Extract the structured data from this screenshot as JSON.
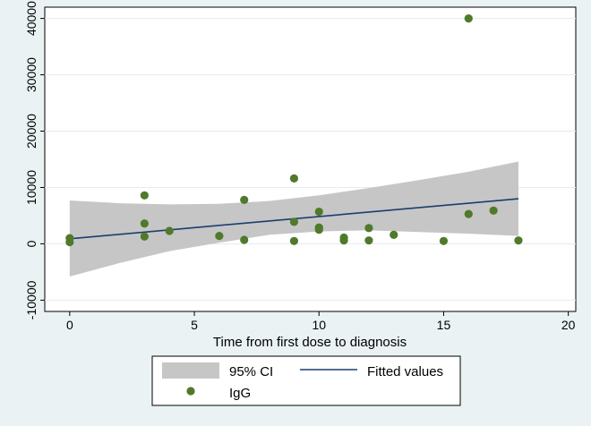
{
  "chart_data": {
    "type": "scatter",
    "title": "",
    "xlabel": "Time from first dose to diagnosis",
    "ylabel": "",
    "xlim": [
      -1,
      20.3
    ],
    "ylim": [
      -12000,
      42000
    ],
    "xticks": [
      0,
      5,
      10,
      15,
      20
    ],
    "yticks": [
      -10000,
      0,
      10000,
      20000,
      30000,
      40000
    ],
    "xtick_labels": [
      "0",
      "5",
      "10",
      "15",
      "20"
    ],
    "ytick_labels": [
      "-10000",
      "0",
      "10000",
      "20000",
      "30000",
      "40000"
    ],
    "grid": true,
    "legend_position": "bottom",
    "series": [
      {
        "name": "IgG",
        "kind": "scatter",
        "color": "#4f7a2c",
        "points": [
          [
            0,
            1000
          ],
          [
            0,
            300
          ],
          [
            3,
            8600
          ],
          [
            3,
            3600
          ],
          [
            3,
            1300
          ],
          [
            4,
            2300
          ],
          [
            6,
            1400
          ],
          [
            7,
            7800
          ],
          [
            7,
            700
          ],
          [
            9,
            11600
          ],
          [
            9,
            3900
          ],
          [
            9,
            500
          ],
          [
            10,
            5700
          ],
          [
            10,
            2900
          ],
          [
            10,
            2500
          ],
          [
            11,
            1100
          ],
          [
            11,
            600
          ],
          [
            12,
            2800
          ],
          [
            12,
            600
          ],
          [
            13,
            1600
          ],
          [
            15,
            500
          ],
          [
            16,
            40000
          ],
          [
            16,
            5300
          ],
          [
            17,
            5900
          ],
          [
            18,
            600
          ]
        ]
      },
      {
        "name": "Fitted values",
        "kind": "line",
        "color": "#1a3e6e",
        "points": [
          [
            0,
            900
          ],
          [
            18,
            8000
          ]
        ]
      },
      {
        "name": "95% CI",
        "kind": "band",
        "color": "#c6c6c6",
        "x": [
          0,
          2,
          4,
          6,
          8,
          10,
          12,
          14,
          16,
          18
        ],
        "upper": [
          7700,
          7200,
          7000,
          7100,
          7600,
          8600,
          9900,
          11300,
          12800,
          14600
        ],
        "lower": [
          -5800,
          -3400,
          -1300,
          200,
          1600,
          2200,
          2400,
          2100,
          1800,
          1400
        ]
      }
    ],
    "legend": {
      "ci_label": "95% CI",
      "fitted_label": "Fitted values",
      "igg_label": "IgG"
    }
  }
}
